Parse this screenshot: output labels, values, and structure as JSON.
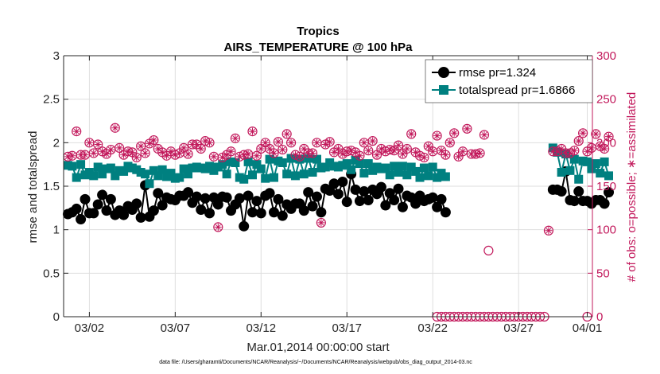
{
  "chart_data": {
    "type": "line",
    "title": "Tropics",
    "subtitle": "AIRS_TEMPERATURE @ 100 hPa",
    "xlabel": "Mar.01,2014 00:00:00 start",
    "ylabel": "rmse and totalspread",
    "y2label": "# of obs: o=possible; ∗=assimilated",
    "xlim": [
      0.5,
      31.3
    ],
    "ylim": [
      0,
      3
    ],
    "y2lim": [
      0,
      300
    ],
    "x_ticks": [
      {
        "x": 2,
        "label": "03/02"
      },
      {
        "x": 7,
        "label": "03/07"
      },
      {
        "x": 12,
        "label": "03/12"
      },
      {
        "x": 17,
        "label": "03/17"
      },
      {
        "x": 22,
        "label": "03/22"
      },
      {
        "x": 27,
        "label": "03/27"
      },
      {
        "x": 31,
        "label": "04/01"
      }
    ],
    "y_ticks": [
      "0",
      "0.5",
      "1",
      "1.5",
      "2",
      "2.5",
      "3"
    ],
    "y2_ticks": [
      "0",
      "50",
      "100",
      "150",
      "200",
      "250",
      "300"
    ],
    "legend": [
      {
        "name": "rmse pr=1.324",
        "color": "#000000"
      },
      {
        "name": "totalspread pr=1.6866",
        "color": "#008080"
      }
    ],
    "footnote": "data file: /Users/gharamti/Documents/NCAR/Reanalysis/~/Documents/NCAR/Reanalysis/webpub/obs_diag_output_2014-03.nc",
    "colors": {
      "rmse": "#000000",
      "spread": "#008080",
      "obs": "#c2185b",
      "grid": "#dedede"
    },
    "segments": [
      {
        "start": 0.75,
        "step": 0.25,
        "rmse": [
          1.18,
          1.2,
          1.24,
          1.12,
          1.35,
          1.19,
          1.19,
          1.29,
          1.4,
          1.22,
          1.35,
          1.17,
          1.22,
          1.17,
          1.27,
          1.23,
          1.3,
          1.14,
          1.51,
          1.15,
          1.22,
          1.42,
          1.28,
          1.37,
          1.35,
          1.34,
          1.39,
          1.39,
          1.43,
          1.31,
          1.38,
          1.23,
          1.36,
          1.19,
          1.37,
          1.29,
          1.38,
          1.37,
          1.22,
          1.29,
          1.36,
          1.04,
          1.39,
          1.2,
          1.33,
          1.19,
          1.39,
          1.42,
          1.2,
          1.35,
          1.16,
          1.29,
          1.24,
          1.3,
          1.3,
          1.22,
          1.43,
          1.27,
          1.38,
          1.2,
          1.47,
          1.45,
          1.53,
          1.41,
          1.55,
          1.32,
          1.64,
          1.46,
          1.33,
          1.44,
          1.34,
          1.46,
          1.41,
          1.49,
          1.28,
          1.42,
          1.34,
          1.47,
          1.26,
          1.39,
          1.37,
          1.3,
          1.39,
          1.33,
          1.35,
          1.37,
          1.26,
          1.35,
          1.2
        ],
        "spread": [
          1.74,
          1.73,
          1.6,
          1.75,
          1.63,
          1.66,
          1.62,
          1.72,
          1.64,
          1.7,
          1.71,
          1.62,
          1.68,
          1.67,
          1.73,
          1.71,
          1.69,
          1.66,
          1.64,
          1.53,
          1.68,
          1.62,
          1.69,
          1.61,
          1.65,
          1.59,
          1.6,
          1.7,
          1.64,
          1.71,
          1.72,
          1.71,
          1.7,
          1.73,
          1.68,
          1.72,
          1.75,
          1.64,
          1.78,
          1.77,
          1.6,
          1.58,
          1.78,
          1.63,
          1.75,
          1.7,
          1.59,
          1.81,
          1.6,
          1.79,
          1.77,
          1.64,
          1.82,
          1.62,
          1.81,
          1.64,
          1.82,
          1.66,
          1.81,
          1.71,
          1.72,
          1.77,
          1.73,
          1.72,
          1.74,
          1.76,
          1.69,
          1.8,
          1.76,
          1.65,
          1.76,
          1.68,
          1.72,
          1.7,
          1.71,
          1.63,
          1.73,
          1.66,
          1.73,
          1.63,
          1.72,
          1.67,
          1.6,
          1.71,
          1.62,
          1.72,
          1.6,
          1.65,
          1.61
        ]
      },
      {
        "start": 29.0,
        "step": 0.25,
        "rmse": [
          1.46,
          1.46,
          1.44,
          1.67,
          1.34,
          1.33,
          1.44,
          1.33,
          1.33,
          1.3,
          1.34,
          1.34,
          1.3,
          1.43
        ],
        "spread": [
          1.94,
          1.89,
          1.66,
          1.87,
          1.68,
          1.81,
          1.58,
          1.79,
          1.78,
          1.7,
          1.76,
          1.65,
          1.78,
          1.62
        ]
      }
    ],
    "obs_assimilated": [
      {
        "start": 0.75,
        "step": 0.25,
        "values": [
          184,
          185,
          213,
          186,
          186,
          200,
          188,
          198,
          190,
          187,
          192,
          217,
          194,
          186,
          190,
          189,
          183,
          196,
          188,
          199,
          203,
          193,
          189,
          185,
          190,
          186,
          188,
          194,
          187,
          198,
          198,
          193,
          202,
          200,
          184,
          103,
          183,
          186,
          190,
          205,
          184,
          186,
          187,
          213,
          185,
          193,
          200,
          193,
          188,
          201,
          192,
          210,
          200,
          186,
          184,
          193,
          188,
          188,
          200,
          108,
          198,
          201,
          189,
          193,
          187,
          190,
          191,
          189,
          185,
          200,
          191,
          202,
          186,
          193,
          190,
          192,
          191,
          197,
          187,
          193,
          210,
          189,
          185,
          183,
          196,
          190,
          208,
          191,
          186,
          200,
          211,
          184,
          190,
          216,
          187,
          187,
          188,
          209
        ]
      },
      {
        "start": 28.75,
        "step": 0.25,
        "values": [
          99,
          190,
          190,
          193,
          188,
          188,
          191,
          202,
          211,
          190,
          194,
          210,
          196,
          193,
          207
        ]
      }
    ],
    "obs_possible": [
      {
        "start": 0.75,
        "step": 0.25,
        "values": [
          184,
          185,
          213,
          186,
          186,
          200,
          188,
          198,
          190,
          187,
          192,
          217,
          194,
          186,
          190,
          189,
          183,
          196,
          188,
          199,
          203,
          193,
          189,
          185,
          190,
          186,
          188,
          194,
          187,
          198,
          198,
          193,
          202,
          200,
          184,
          103,
          183,
          186,
          190,
          205,
          184,
          186,
          187,
          213,
          185,
          193,
          200,
          193,
          188,
          201,
          192,
          210,
          200,
          186,
          184,
          193,
          188,
          188,
          200,
          108,
          198,
          201,
          189,
          193,
          187,
          190,
          191,
          189,
          185,
          200,
          191,
          202,
          186,
          193,
          190,
          192,
          191,
          197,
          187,
          193,
          210,
          189,
          185,
          183,
          196,
          190,
          208,
          191,
          186,
          200,
          211,
          184,
          190,
          216,
          187,
          187,
          188,
          209,
          76
        ]
      },
      {
        "start": 22.25,
        "step": 0.25,
        "values": [
          0,
          0,
          0,
          0,
          0,
          0,
          0,
          0,
          0,
          0,
          0,
          0,
          0,
          0,
          0,
          0,
          0,
          0,
          0,
          0,
          0,
          0,
          0,
          0,
          0,
          0
        ]
      },
      {
        "start": 28.75,
        "step": 0.25,
        "values": [
          99,
          190,
          190,
          193,
          188,
          188,
          191,
          202,
          211,
          190,
          194,
          210,
          196,
          193,
          207
        ]
      },
      {
        "start": 31.0,
        "step": 0.25,
        "values": [
          0
        ]
      }
    ]
  }
}
